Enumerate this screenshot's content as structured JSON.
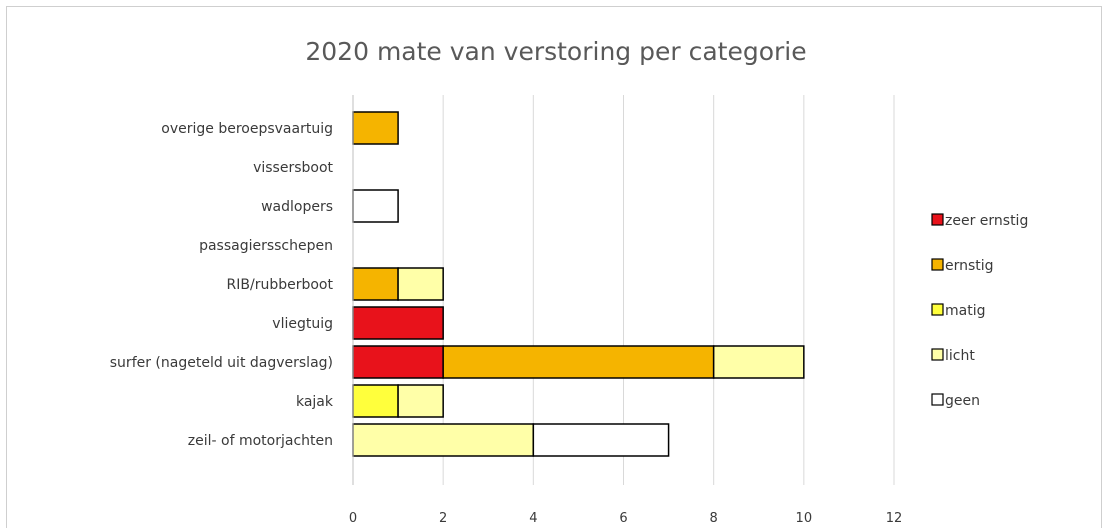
{
  "chart_data": {
    "type": "bar",
    "orientation": "horizontal",
    "stacked": true,
    "title": "2020  mate van verstoring per categorie",
    "xlabel": "",
    "ylabel": "",
    "xlim": [
      0,
      12
    ],
    "xticks": [
      "0",
      "2",
      "4",
      "6",
      "8",
      "10",
      "12"
    ],
    "grid": true,
    "legend_position": "right",
    "categories": [
      "overige beroepsvaartuig",
      "vissersboot",
      "wadlopers",
      "passagiersschepen",
      "RIB/rubberboot",
      "vliegtuig",
      "surfer (nageteld uit dagverslag)",
      "kajak",
      "zeil- of motorjachten"
    ],
    "series": [
      {
        "name": "zeer ernstig",
        "color": "#e8121b",
        "values": [
          0,
          0,
          0,
          0,
          0,
          2,
          2,
          0,
          0
        ]
      },
      {
        "name": "ernstig",
        "color": "#f5b400",
        "values": [
          1,
          0,
          0,
          0,
          1,
          0,
          6,
          0,
          0
        ]
      },
      {
        "name": "matig",
        "color": "#ffff3c",
        "values": [
          0,
          0,
          0,
          0,
          0,
          0,
          0,
          1,
          0
        ]
      },
      {
        "name": "licht",
        "color": "#ffffa8",
        "values": [
          0,
          0,
          0,
          0,
          1,
          0,
          2,
          1,
          4
        ]
      },
      {
        "name": "geen",
        "color": "#ffffff",
        "values": [
          0,
          0,
          1,
          0,
          0,
          0,
          0,
          0,
          3
        ]
      }
    ]
  }
}
